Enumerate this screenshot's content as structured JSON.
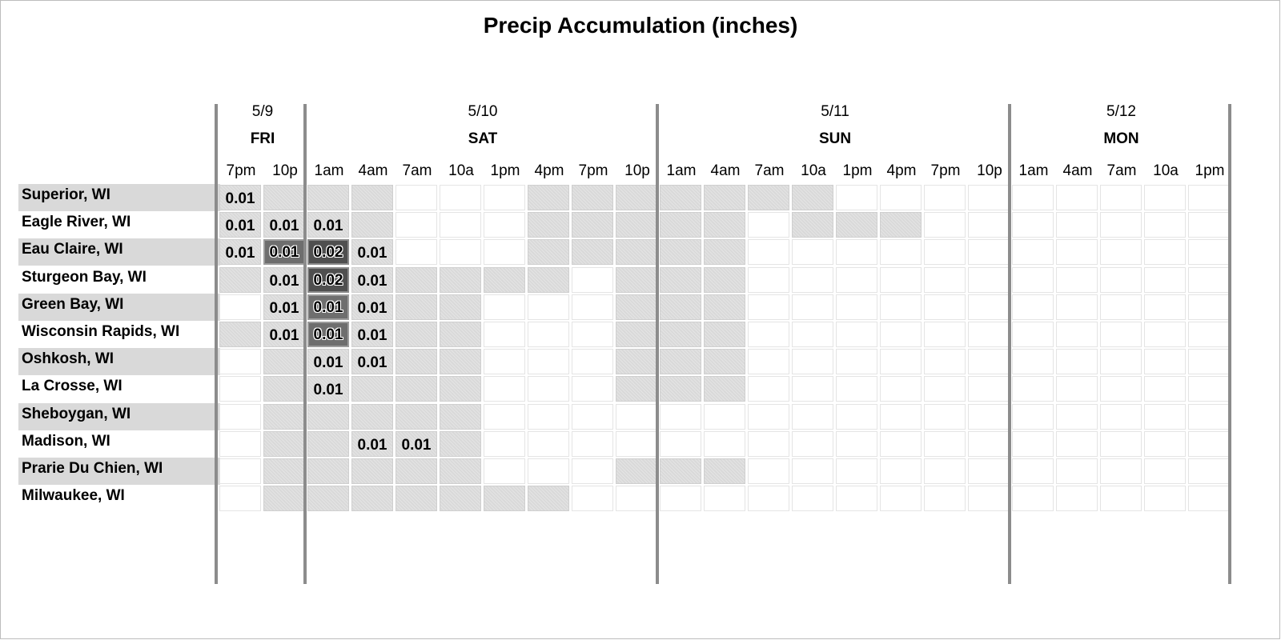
{
  "chart_data": {
    "type": "heatmap",
    "title": "Precip Accumulation (inches)",
    "days": [
      {
        "date": "5/9",
        "day": "FRI",
        "start": 0,
        "count": 2
      },
      {
        "date": "5/10",
        "day": "SAT",
        "start": 2,
        "count": 8
      },
      {
        "date": "5/11",
        "day": "SUN",
        "start": 10,
        "count": 8
      },
      {
        "date": "5/12",
        "day": "MON",
        "start": 18,
        "count": 5
      }
    ],
    "times": [
      "7pm",
      "10p",
      "1am",
      "4am",
      "7am",
      "10a",
      "1pm",
      "4pm",
      "7pm",
      "10p",
      "1am",
      "4am",
      "7am",
      "10a",
      "1pm",
      "4pm",
      "7pm",
      "10p",
      "1am",
      "4am",
      "7am",
      "10a",
      "1pm"
    ],
    "rows": [
      {
        "city": "Superior, WI",
        "shaded": true,
        "values": [
          "0.01",
          "",
          "",
          "",
          "",
          "",
          "",
          "",
          "",
          "",
          "",
          "",
          "",
          "",
          "",
          "",
          "",
          "",
          "",
          "",
          "",
          "",
          ""
        ],
        "levels": [
          1,
          1,
          1,
          1,
          0,
          0,
          0,
          1,
          1,
          1,
          1,
          1,
          1,
          1,
          0,
          0,
          0,
          0,
          0,
          0,
          0,
          0,
          0
        ]
      },
      {
        "city": "Eagle River, WI",
        "shaded": false,
        "values": [
          "0.01",
          "0.01",
          "0.01",
          "",
          "",
          "",
          "",
          "",
          "",
          "",
          "",
          "",
          "",
          "",
          "",
          "",
          "",
          "",
          "",
          "",
          "",
          "",
          ""
        ],
        "levels": [
          1,
          1,
          1,
          1,
          0,
          0,
          0,
          1,
          1,
          1,
          1,
          1,
          0,
          1,
          1,
          1,
          0,
          0,
          0,
          0,
          0,
          0,
          0
        ]
      },
      {
        "city": "Eau Claire, WI",
        "shaded": true,
        "values": [
          "0.01",
          "0.01",
          "0.02",
          "0.01",
          "",
          "",
          "",
          "",
          "",
          "",
          "",
          "",
          "",
          "",
          "",
          "",
          "",
          "",
          "",
          "",
          "",
          "",
          ""
        ],
        "levels": [
          1,
          2,
          3,
          1,
          0,
          0,
          0,
          1,
          1,
          1,
          1,
          1,
          0,
          0,
          0,
          0,
          0,
          0,
          0,
          0,
          0,
          0,
          0
        ]
      },
      {
        "city": "Sturgeon Bay, WI",
        "shaded": false,
        "values": [
          "",
          "0.01",
          "0.02",
          "0.01",
          "",
          "",
          "",
          "",
          "",
          "",
          "",
          "",
          "",
          "",
          "",
          "",
          "",
          "",
          "",
          "",
          "",
          "",
          ""
        ],
        "levels": [
          1,
          1,
          3,
          1,
          1,
          1,
          1,
          1,
          0,
          1,
          1,
          1,
          0,
          0,
          0,
          0,
          0,
          0,
          0,
          0,
          0,
          0,
          0
        ]
      },
      {
        "city": "Green Bay, WI",
        "shaded": true,
        "values": [
          "",
          "0.01",
          "0.01",
          "0.01",
          "",
          "",
          "",
          "",
          "",
          "",
          "",
          "",
          "",
          "",
          "",
          "",
          "",
          "",
          "",
          "",
          "",
          "",
          ""
        ],
        "levels": [
          0,
          1,
          2,
          1,
          1,
          1,
          0,
          0,
          0,
          1,
          1,
          1,
          0,
          0,
          0,
          0,
          0,
          0,
          0,
          0,
          0,
          0,
          0
        ]
      },
      {
        "city": "Wisconsin Rapids, WI",
        "shaded": false,
        "values": [
          "",
          "0.01",
          "0.01",
          "0.01",
          "",
          "",
          "",
          "",
          "",
          "",
          "",
          "",
          "",
          "",
          "",
          "",
          "",
          "",
          "",
          "",
          "",
          "",
          ""
        ],
        "levels": [
          1,
          1,
          2,
          1,
          1,
          1,
          0,
          0,
          0,
          1,
          1,
          1,
          0,
          0,
          0,
          0,
          0,
          0,
          0,
          0,
          0,
          0,
          0
        ]
      },
      {
        "city": "Oshkosh, WI",
        "shaded": true,
        "values": [
          "",
          "",
          "0.01",
          "0.01",
          "",
          "",
          "",
          "",
          "",
          "",
          "",
          "",
          "",
          "",
          "",
          "",
          "",
          "",
          "",
          "",
          "",
          "",
          ""
        ],
        "levels": [
          0,
          1,
          1,
          1,
          1,
          1,
          0,
          0,
          0,
          1,
          1,
          1,
          0,
          0,
          0,
          0,
          0,
          0,
          0,
          0,
          0,
          0,
          0
        ]
      },
      {
        "city": "La Crosse, WI",
        "shaded": false,
        "values": [
          "",
          "",
          "0.01",
          "",
          "",
          "",
          "",
          "",
          "",
          "",
          "",
          "",
          "",
          "",
          "",
          "",
          "",
          "",
          "",
          "",
          "",
          "",
          ""
        ],
        "levels": [
          0,
          1,
          1,
          1,
          1,
          1,
          0,
          0,
          0,
          1,
          1,
          1,
          0,
          0,
          0,
          0,
          0,
          0,
          0,
          0,
          0,
          0,
          0
        ]
      },
      {
        "city": "Sheboygan, WI",
        "shaded": true,
        "values": [
          "",
          "",
          "",
          "",
          "",
          "",
          "",
          "",
          "",
          "",
          "",
          "",
          "",
          "",
          "",
          "",
          "",
          "",
          "",
          "",
          "",
          "",
          ""
        ],
        "levels": [
          0,
          1,
          1,
          1,
          1,
          1,
          0,
          0,
          0,
          0,
          0,
          0,
          0,
          0,
          0,
          0,
          0,
          0,
          0,
          0,
          0,
          0,
          0
        ]
      },
      {
        "city": "Madison, WI",
        "shaded": false,
        "values": [
          "",
          "",
          "",
          "0.01",
          "0.01",
          "",
          "",
          "",
          "",
          "",
          "",
          "",
          "",
          "",
          "",
          "",
          "",
          "",
          "",
          "",
          "",
          "",
          ""
        ],
        "levels": [
          0,
          1,
          1,
          1,
          1,
          1,
          0,
          0,
          0,
          0,
          0,
          0,
          0,
          0,
          0,
          0,
          0,
          0,
          0,
          0,
          0,
          0,
          0
        ]
      },
      {
        "city": "Prarie Du Chien, WI",
        "shaded": true,
        "values": [
          "",
          "",
          "",
          "",
          "",
          "",
          "",
          "",
          "",
          "",
          "",
          "",
          "",
          "",
          "",
          "",
          "",
          "",
          "",
          "",
          "",
          "",
          ""
        ],
        "levels": [
          0,
          1,
          1,
          1,
          1,
          1,
          0,
          0,
          0,
          1,
          1,
          1,
          0,
          0,
          0,
          0,
          0,
          0,
          0,
          0,
          0,
          0,
          0
        ]
      },
      {
        "city": "Milwaukee, WI",
        "shaded": false,
        "values": [
          "",
          "",
          "",
          "",
          "",
          "",
          "",
          "",
          "",
          "",
          "",
          "",
          "",
          "",
          "",
          "",
          "",
          "",
          "",
          "",
          "",
          "",
          ""
        ],
        "levels": [
          0,
          1,
          1,
          1,
          1,
          1,
          1,
          1,
          0,
          0,
          0,
          0,
          0,
          0,
          0,
          0,
          0,
          0,
          0,
          0,
          0,
          0,
          0
        ]
      }
    ],
    "colors": {
      "no_precip": "#ffffff",
      "low": "#d9d9d9",
      "medium": "#6e6e6e",
      "high": "#4f4f4f",
      "row_label_shade": "#d9d9d9"
    }
  }
}
